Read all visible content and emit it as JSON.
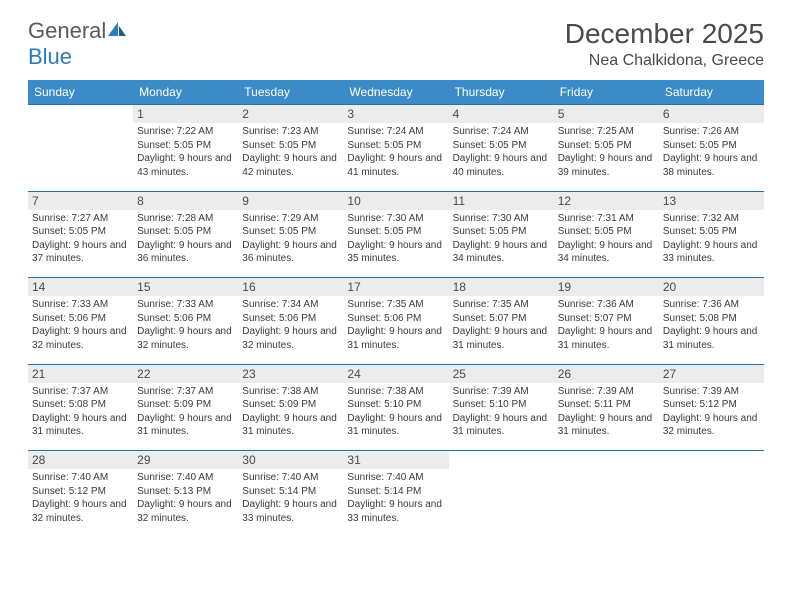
{
  "brand": {
    "part1": "General",
    "part2": "Blue"
  },
  "title": "December 2025",
  "location": "Nea Chalkidona, Greece",
  "colors": {
    "header_bg": "#3b8bc9",
    "header_text": "#ffffff",
    "daynum_bg": "#ececec",
    "rule": "#2b6fa8",
    "text": "#3a3a3a",
    "title_text": "#4a4a4a",
    "logo_gray": "#5a5a5a",
    "logo_blue": "#2b7bbf"
  },
  "fonts": {
    "title_size_pt": 21,
    "location_size_pt": 12,
    "header_size_pt": 9,
    "daynum_size_pt": 9,
    "body_size_pt": 7.5
  },
  "day_headers": [
    "Sunday",
    "Monday",
    "Tuesday",
    "Wednesday",
    "Thursday",
    "Friday",
    "Saturday"
  ],
  "weeks": [
    [
      null,
      {
        "n": "1",
        "sr": "7:22 AM",
        "ss": "5:05 PM",
        "dl": "9 hours and 43 minutes."
      },
      {
        "n": "2",
        "sr": "7:23 AM",
        "ss": "5:05 PM",
        "dl": "9 hours and 42 minutes."
      },
      {
        "n": "3",
        "sr": "7:24 AM",
        "ss": "5:05 PM",
        "dl": "9 hours and 41 minutes."
      },
      {
        "n": "4",
        "sr": "7:24 AM",
        "ss": "5:05 PM",
        "dl": "9 hours and 40 minutes."
      },
      {
        "n": "5",
        "sr": "7:25 AM",
        "ss": "5:05 PM",
        "dl": "9 hours and 39 minutes."
      },
      {
        "n": "6",
        "sr": "7:26 AM",
        "ss": "5:05 PM",
        "dl": "9 hours and 38 minutes."
      }
    ],
    [
      {
        "n": "7",
        "sr": "7:27 AM",
        "ss": "5:05 PM",
        "dl": "9 hours and 37 minutes."
      },
      {
        "n": "8",
        "sr": "7:28 AM",
        "ss": "5:05 PM",
        "dl": "9 hours and 36 minutes."
      },
      {
        "n": "9",
        "sr": "7:29 AM",
        "ss": "5:05 PM",
        "dl": "9 hours and 36 minutes."
      },
      {
        "n": "10",
        "sr": "7:30 AM",
        "ss": "5:05 PM",
        "dl": "9 hours and 35 minutes."
      },
      {
        "n": "11",
        "sr": "7:30 AM",
        "ss": "5:05 PM",
        "dl": "9 hours and 34 minutes."
      },
      {
        "n": "12",
        "sr": "7:31 AM",
        "ss": "5:05 PM",
        "dl": "9 hours and 34 minutes."
      },
      {
        "n": "13",
        "sr": "7:32 AM",
        "ss": "5:05 PM",
        "dl": "9 hours and 33 minutes."
      }
    ],
    [
      {
        "n": "14",
        "sr": "7:33 AM",
        "ss": "5:06 PM",
        "dl": "9 hours and 32 minutes."
      },
      {
        "n": "15",
        "sr": "7:33 AM",
        "ss": "5:06 PM",
        "dl": "9 hours and 32 minutes."
      },
      {
        "n": "16",
        "sr": "7:34 AM",
        "ss": "5:06 PM",
        "dl": "9 hours and 32 minutes."
      },
      {
        "n": "17",
        "sr": "7:35 AM",
        "ss": "5:06 PM",
        "dl": "9 hours and 31 minutes."
      },
      {
        "n": "18",
        "sr": "7:35 AM",
        "ss": "5:07 PM",
        "dl": "9 hours and 31 minutes."
      },
      {
        "n": "19",
        "sr": "7:36 AM",
        "ss": "5:07 PM",
        "dl": "9 hours and 31 minutes."
      },
      {
        "n": "20",
        "sr": "7:36 AM",
        "ss": "5:08 PM",
        "dl": "9 hours and 31 minutes."
      }
    ],
    [
      {
        "n": "21",
        "sr": "7:37 AM",
        "ss": "5:08 PM",
        "dl": "9 hours and 31 minutes."
      },
      {
        "n": "22",
        "sr": "7:37 AM",
        "ss": "5:09 PM",
        "dl": "9 hours and 31 minutes."
      },
      {
        "n": "23",
        "sr": "7:38 AM",
        "ss": "5:09 PM",
        "dl": "9 hours and 31 minutes."
      },
      {
        "n": "24",
        "sr": "7:38 AM",
        "ss": "5:10 PM",
        "dl": "9 hours and 31 minutes."
      },
      {
        "n": "25",
        "sr": "7:39 AM",
        "ss": "5:10 PM",
        "dl": "9 hours and 31 minutes."
      },
      {
        "n": "26",
        "sr": "7:39 AM",
        "ss": "5:11 PM",
        "dl": "9 hours and 31 minutes."
      },
      {
        "n": "27",
        "sr": "7:39 AM",
        "ss": "5:12 PM",
        "dl": "9 hours and 32 minutes."
      }
    ],
    [
      {
        "n": "28",
        "sr": "7:40 AM",
        "ss": "5:12 PM",
        "dl": "9 hours and 32 minutes."
      },
      {
        "n": "29",
        "sr": "7:40 AM",
        "ss": "5:13 PM",
        "dl": "9 hours and 32 minutes."
      },
      {
        "n": "30",
        "sr": "7:40 AM",
        "ss": "5:14 PM",
        "dl": "9 hours and 33 minutes."
      },
      {
        "n": "31",
        "sr": "7:40 AM",
        "ss": "5:14 PM",
        "dl": "9 hours and 33 minutes."
      },
      null,
      null,
      null
    ]
  ],
  "labels": {
    "sunrise": "Sunrise:",
    "sunset": "Sunset:",
    "daylight": "Daylight:"
  }
}
